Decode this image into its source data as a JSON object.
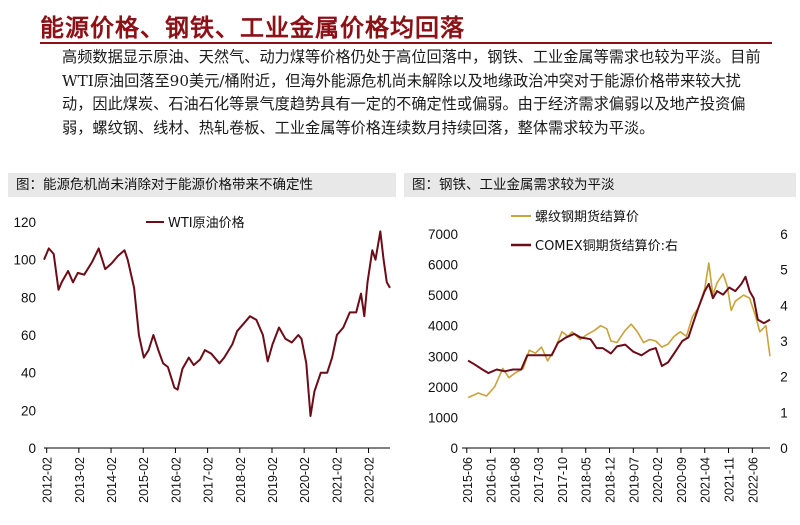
{
  "title": "能源价格、钢铁、工业金属价格均回落",
  "paragraph": "高频数据显示原油、天然气、动力煤等价格仍处于高位回落中，钢铁、工业金属等需求也较为平淡。目前WTI原油回落至90美元/桶附近，但海外能源危机尚未解除以及地缘政治冲突对于能源价格带来较大扰动，因此煤炭、石油石化等景气度趋势具有一定的不确定性或偏弱。由于经济需求偏弱以及地产投资偏弱，螺纹钢、线材、热轧卷板、工业金属等价格连续数月持续回落，整体需求较为平淡。",
  "colors": {
    "accent": "#8b1116",
    "series_dark": "#6b0d18",
    "series_gold": "#c9a23c",
    "panel_bg": "#e8e8e8"
  },
  "chart_data": [
    {
      "type": "line",
      "panel_title": "图：能源危机尚未消除对于能源价格带来不确定性",
      "ylim": [
        0,
        120
      ],
      "y_ticks": [
        "0",
        "20",
        "40",
        "60",
        "80",
        "100",
        "120"
      ],
      "x_ticks": [
        "2012-02",
        "2013-02",
        "2014-02",
        "2015-02",
        "2016-02",
        "2017-02",
        "2018-02",
        "2019-02",
        "2020-02",
        "2021-02",
        "2022-02"
      ],
      "xrange": [
        2012.0,
        2022.75
      ],
      "series": [
        {
          "name": "WTI原油价格",
          "color": "#6b0d18",
          "points": [
            [
              2012.0,
              100
            ],
            [
              2012.15,
              106
            ],
            [
              2012.3,
              103
            ],
            [
              2012.45,
              84
            ],
            [
              2012.55,
              88
            ],
            [
              2012.75,
              94
            ],
            [
              2012.9,
              88
            ],
            [
              2013.05,
              93
            ],
            [
              2013.25,
              92
            ],
            [
              2013.5,
              99
            ],
            [
              2013.7,
              106
            ],
            [
              2013.9,
              95
            ],
            [
              2014.1,
              98
            ],
            [
              2014.3,
              102
            ],
            [
              2014.5,
              105
            ],
            [
              2014.6,
              100
            ],
            [
              2014.8,
              85
            ],
            [
              2014.95,
              60
            ],
            [
              2015.1,
              48
            ],
            [
              2015.25,
              52
            ],
            [
              2015.4,
              60
            ],
            [
              2015.55,
              52
            ],
            [
              2015.7,
              45
            ],
            [
              2015.85,
              43
            ],
            [
              2016.05,
              32
            ],
            [
              2016.15,
              31
            ],
            [
              2016.3,
              42
            ],
            [
              2016.5,
              48
            ],
            [
              2016.65,
              44
            ],
            [
              2016.85,
              47
            ],
            [
              2017.0,
              52
            ],
            [
              2017.2,
              50
            ],
            [
              2017.45,
              45
            ],
            [
              2017.6,
              48
            ],
            [
              2017.85,
              55
            ],
            [
              2018.0,
              62
            ],
            [
              2018.2,
              66
            ],
            [
              2018.4,
              70
            ],
            [
              2018.6,
              68
            ],
            [
              2018.8,
              60
            ],
            [
              2018.95,
              46
            ],
            [
              2019.1,
              55
            ],
            [
              2019.3,
              64
            ],
            [
              2019.5,
              58
            ],
            [
              2019.7,
              56
            ],
            [
              2019.9,
              60
            ],
            [
              2020.0,
              58
            ],
            [
              2020.15,
              45
            ],
            [
              2020.28,
              17
            ],
            [
              2020.4,
              30
            ],
            [
              2020.6,
              40
            ],
            [
              2020.8,
              40
            ],
            [
              2020.95,
              48
            ],
            [
              2021.1,
              60
            ],
            [
              2021.3,
              64
            ],
            [
              2021.5,
              72
            ],
            [
              2021.7,
              72
            ],
            [
              2021.85,
              82
            ],
            [
              2021.95,
              70
            ],
            [
              2022.05,
              88
            ],
            [
              2022.2,
              105
            ],
            [
              2022.3,
              100
            ],
            [
              2022.45,
              115
            ],
            [
              2022.55,
              100
            ],
            [
              2022.65,
              88
            ],
            [
              2022.75,
              85
            ]
          ]
        }
      ]
    },
    {
      "type": "line",
      "panel_title": "图：钢铁、工业金属需求较为平淡",
      "ylim_left": [
        0,
        7000
      ],
      "ylim_right": [
        0,
        6
      ],
      "y_ticks_left": [
        "0",
        "1000",
        "2000",
        "3000",
        "4000",
        "5000",
        "6000",
        "7000"
      ],
      "y_ticks_right": [
        "0",
        "1",
        "2",
        "3",
        "4",
        "5",
        "6"
      ],
      "x_ticks": [
        "2015-06",
        "2016-01",
        "2016-08",
        "2017-03",
        "2017-10",
        "2018-05",
        "2018-12",
        "2019-07",
        "2020-02",
        "2020-09",
        "2021-04",
        "2021-11",
        "2022-06"
      ],
      "xrange": [
        2015.3,
        2022.85
      ],
      "series": [
        {
          "name": "螺纹钢期货结算价",
          "axis": "left",
          "color": "#c9a23c",
          "points": [
            [
              2015.45,
              1650
            ],
            [
              2015.7,
              1800
            ],
            [
              2015.9,
              1700
            ],
            [
              2016.1,
              2000
            ],
            [
              2016.3,
              2600
            ],
            [
              2016.45,
              2300
            ],
            [
              2016.6,
              2450
            ],
            [
              2016.8,
              2600
            ],
            [
              2016.95,
              3200
            ],
            [
              2017.1,
              3100
            ],
            [
              2017.25,
              3300
            ],
            [
              2017.4,
              2850
            ],
            [
              2017.6,
              3300
            ],
            [
              2017.75,
              3800
            ],
            [
              2017.9,
              3650
            ],
            [
              2018.0,
              3800
            ],
            [
              2018.2,
              3550
            ],
            [
              2018.35,
              3700
            ],
            [
              2018.55,
              3850
            ],
            [
              2018.7,
              4000
            ],
            [
              2018.85,
              3900
            ],
            [
              2018.95,
              3500
            ],
            [
              2019.1,
              3450
            ],
            [
              2019.3,
              3850
            ],
            [
              2019.45,
              4050
            ],
            [
              2019.6,
              3800
            ],
            [
              2019.75,
              3450
            ],
            [
              2019.9,
              3550
            ],
            [
              2020.05,
              3500
            ],
            [
              2020.2,
              3300
            ],
            [
              2020.35,
              3400
            ],
            [
              2020.5,
              3650
            ],
            [
              2020.65,
              3800
            ],
            [
              2020.8,
              3650
            ],
            [
              2020.95,
              4300
            ],
            [
              2021.1,
              4600
            ],
            [
              2021.25,
              5200
            ],
            [
              2021.35,
              6050
            ],
            [
              2021.45,
              5000
            ],
            [
              2021.55,
              5400
            ],
            [
              2021.7,
              5700
            ],
            [
              2021.8,
              5300
            ],
            [
              2021.9,
              4500
            ],
            [
              2022.0,
              4800
            ],
            [
              2022.2,
              5000
            ],
            [
              2022.35,
              4900
            ],
            [
              2022.5,
              4300
            ],
            [
              2022.6,
              3800
            ],
            [
              2022.75,
              4000
            ],
            [
              2022.85,
              3000
            ]
          ]
        },
        {
          "name": "COMEX铜期货结算价:右",
          "axis": "right",
          "color": "#6b0d18",
          "points": [
            [
              2015.45,
              2.45
            ],
            [
              2015.6,
              2.35
            ],
            [
              2015.8,
              2.2
            ],
            [
              2015.95,
              2.1
            ],
            [
              2016.15,
              2.2
            ],
            [
              2016.35,
              2.15
            ],
            [
              2016.55,
              2.2
            ],
            [
              2016.75,
              2.2
            ],
            [
              2016.9,
              2.6
            ],
            [
              2017.05,
              2.6
            ],
            [
              2017.3,
              2.6
            ],
            [
              2017.5,
              2.6
            ],
            [
              2017.65,
              2.95
            ],
            [
              2017.85,
              3.1
            ],
            [
              2018.05,
              3.2
            ],
            [
              2018.2,
              3.1
            ],
            [
              2018.45,
              3.05
            ],
            [
              2018.6,
              2.8
            ],
            [
              2018.75,
              2.8
            ],
            [
              2018.95,
              2.65
            ],
            [
              2019.1,
              2.85
            ],
            [
              2019.3,
              2.9
            ],
            [
              2019.5,
              2.7
            ],
            [
              2019.7,
              2.6
            ],
            [
              2019.9,
              2.75
            ],
            [
              2020.05,
              2.8
            ],
            [
              2020.2,
              2.3
            ],
            [
              2020.35,
              2.4
            ],
            [
              2020.5,
              2.65
            ],
            [
              2020.7,
              3.0
            ],
            [
              2020.85,
              3.1
            ],
            [
              2020.95,
              3.45
            ],
            [
              2021.1,
              3.95
            ],
            [
              2021.25,
              4.4
            ],
            [
              2021.35,
              4.6
            ],
            [
              2021.45,
              4.2
            ],
            [
              2021.55,
              4.4
            ],
            [
              2021.7,
              4.3
            ],
            [
              2021.85,
              4.5
            ],
            [
              2022.0,
              4.4
            ],
            [
              2022.15,
              4.6
            ],
            [
              2022.25,
              4.8
            ],
            [
              2022.35,
              4.4
            ],
            [
              2022.45,
              4.2
            ],
            [
              2022.55,
              3.6
            ],
            [
              2022.7,
              3.5
            ],
            [
              2022.85,
              3.6
            ]
          ]
        }
      ]
    }
  ]
}
